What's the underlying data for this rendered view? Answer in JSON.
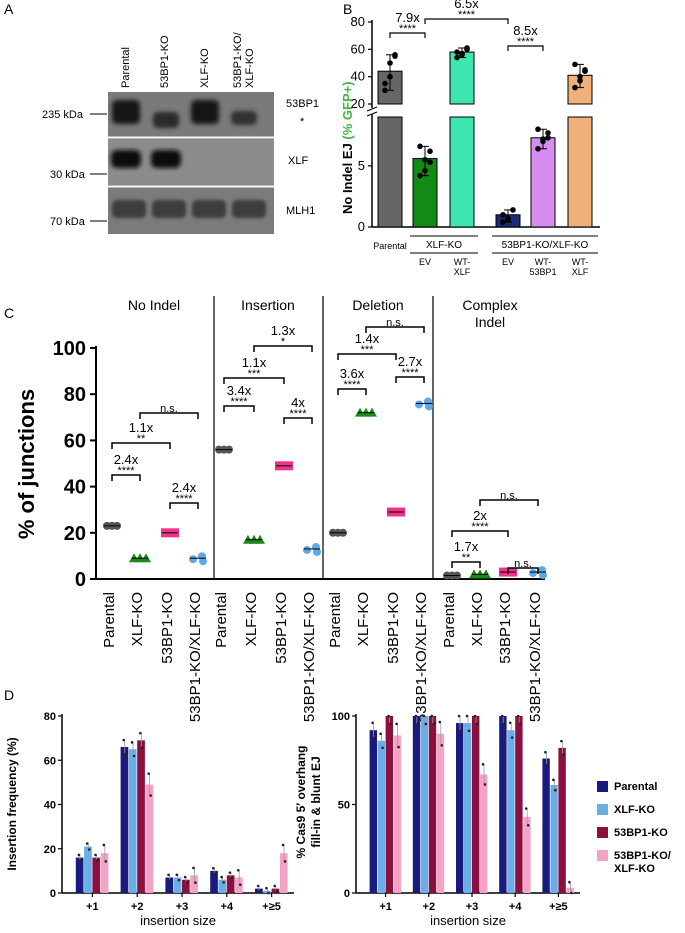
{
  "panels": {
    "A": "A",
    "B": "B",
    "C": "C",
    "D": "D"
  },
  "blot": {
    "lanes": [
      "Parental",
      "53BP1-KO",
      "XLF-KO",
      "53BP1-KO/\nXLF-KO"
    ],
    "markers": [
      "235 kDa",
      "30 kDa",
      "70 kDa"
    ],
    "bands": [
      "53BP1",
      "*",
      "XLF",
      "MLH1"
    ]
  },
  "colors": {
    "parental": "#1a1a7e",
    "xlf": "#6aaee8",
    "bp1": "#8b0f3f",
    "dko": "#f4a2c8",
    "c_green": "#1a8a1a",
    "c_pink": "#f0338a",
    "c_blue": "#5ca8e8",
    "c_gray": "#555555",
    "b_gray": "#666666",
    "b_green": "#138a13",
    "b_teal": "#3de6b0",
    "b_navy": "#1c2a7a",
    "b_violet": "#d78cf0",
    "b_orange": "#f0b07a",
    "gfp": "#3cb83c"
  },
  "chart_data": [
    {
      "id": "B",
      "type": "bar",
      "title": "",
      "ylabel": "No Indel EJ (% GFP+)",
      "ylabel_prefix": "No Indel EJ ",
      "ylabel_colored": "(% GFP+)",
      "categories": [
        "Parental",
        "XLF-KO EV",
        "XLF-KO WT-XLF",
        "53BP1-KO/XLF-KO EV",
        "53BP1-KO/XLF-KO WT-53BP1",
        "53BP1-KO/XLF-KO WT-XLF"
      ],
      "values": [
        44,
        5.6,
        58,
        1.0,
        7.3,
        41
      ],
      "points": [
        [
          35,
          40,
          56,
          30,
          50,
          55
        ],
        [
          4.2,
          5.5,
          6.2,
          6.6,
          4.6,
          5.3
        ],
        [
          54,
          57,
          60,
          58,
          56,
          61
        ],
        [
          0.4,
          0.7,
          1.4,
          1.0,
          0.6
        ],
        [
          6.4,
          7.2,
          7.7,
          8.0,
          7.0,
          7.3
        ],
        [
          32,
          37,
          44,
          49,
          40,
          45
        ]
      ],
      "yticks_lower": [
        "0",
        "5"
      ],
      "yticks_upper": [
        "20",
        "40",
        "60",
        "80"
      ],
      "ylim_lower": [
        0,
        9
      ],
      "ylim_upper": [
        20,
        80
      ],
      "group_labels": {
        "xlf": "XLF-KO",
        "dko": "53BP1-KO/XLF-KO"
      },
      "sub_labels": [
        "Parental",
        "EV",
        "WT-\nXLF",
        "EV",
        "WT-\n53BP1",
        "WT-\nXLF"
      ],
      "annotations": [
        {
          "fold": "7.9x",
          "sig": "****"
        },
        {
          "fold": "6.5x",
          "sig": "****"
        },
        {
          "fold": "8.5x",
          "sig": "****"
        }
      ]
    },
    {
      "id": "C",
      "type": "scatter",
      "ylabel": "% of junctions",
      "yticks": [
        "0",
        "20",
        "40",
        "60",
        "80",
        "100"
      ],
      "ylim": [
        0,
        100
      ],
      "categories": [
        "Parental",
        "XLF-KO",
        "53BP1-KO",
        "53BP1-KO/XLF-KO"
      ],
      "sections": [
        {
          "name": "No Indel",
          "values": [
            23,
            9,
            20,
            9
          ],
          "annotations": [
            {
              "fold": "2.4x",
              "sig": "****"
            },
            {
              "fold": "1.1x",
              "sig": "**"
            },
            {
              "fold": "",
              "sig": "n.s."
            },
            {
              "fold": "2.4x",
              "sig": "****"
            }
          ]
        },
        {
          "name": "Insertion",
          "values": [
            56,
            17,
            49,
            13
          ],
          "annotations": [
            {
              "fold": "3.4x",
              "sig": "****"
            },
            {
              "fold": "1.1x",
              "sig": "***"
            },
            {
              "fold": "1.3x",
              "sig": "*"
            },
            {
              "fold": "4x",
              "sig": "****"
            }
          ]
        },
        {
          "name": "Deletion",
          "values": [
            20,
            72,
            29,
            76
          ],
          "annotations": [
            {
              "fold": "3.6x",
              "sig": "****"
            },
            {
              "fold": "1.4x",
              "sig": "***"
            },
            {
              "fold": "",
              "sig": "n.s."
            },
            {
              "fold": "2.7x",
              "sig": "****"
            }
          ]
        },
        {
          "name": "Complex\nIndel",
          "values": [
            1.5,
            2,
            3,
            3
          ],
          "annotations": [
            {
              "fold": "1.7x",
              "sig": "**"
            },
            {
              "fold": "2x",
              "sig": "****"
            },
            {
              "fold": "",
              "sig": "n.s."
            },
            {
              "fold": "",
              "sig": "n.s."
            }
          ]
        }
      ]
    },
    {
      "id": "D-left",
      "type": "bar",
      "ylabel": "Insertion frequency (%)",
      "xlabel": "insertion size",
      "categories": [
        "+1",
        "+2",
        "+3",
        "+4",
        "+≥5"
      ],
      "yticks": [
        "0",
        "20",
        "40",
        "60",
        "80"
      ],
      "ylim": [
        0,
        80
      ],
      "series": [
        {
          "name": "Parental",
          "values": [
            16,
            66,
            7,
            10,
            2
          ]
        },
        {
          "name": "XLF-KO",
          "values": [
            21,
            65,
            7,
            6,
            1
          ]
        },
        {
          "name": "53BP1-KO",
          "values": [
            16,
            69,
            6,
            8,
            2
          ]
        },
        {
          "name": "53BP1-KO/XLF-KO",
          "values": [
            18,
            49,
            8,
            7,
            18
          ]
        }
      ]
    },
    {
      "id": "D-right",
      "type": "bar",
      "ylabel": "% Cas9 5′ overhang fill-in & blunt EJ",
      "ylabel_line1": "% Cas9 5′ overhang",
      "ylabel_line2": "fill-in & blunt EJ",
      "xlabel": "insertion size",
      "categories": [
        "+1",
        "+2",
        "+3",
        "+4",
        "+≥5"
      ],
      "yticks": [
        "0",
        "50",
        "100"
      ],
      "ylim": [
        0,
        100
      ],
      "series": [
        {
          "name": "Parental",
          "values": [
            92,
            100,
            96,
            100,
            76
          ]
        },
        {
          "name": "XLF-KO",
          "values": [
            86,
            100,
            96,
            92,
            61
          ]
        },
        {
          "name": "53BP1-KO",
          "values": [
            100,
            100,
            100,
            100,
            82
          ]
        },
        {
          "name": "53BP1-KO/XLF-KO",
          "values": [
            89,
            90,
            67,
            43,
            3
          ]
        }
      ]
    }
  ],
  "legend": [
    {
      "label": "Parental",
      "color": "#1a1a7e"
    },
    {
      "label": "XLF-KO",
      "color": "#6aaee8"
    },
    {
      "label": "53BP1-KO",
      "color": "#8b0f3f"
    },
    {
      "label": "53BP1-KO/\nXLF-KO",
      "color": "#f4a2c8"
    }
  ]
}
